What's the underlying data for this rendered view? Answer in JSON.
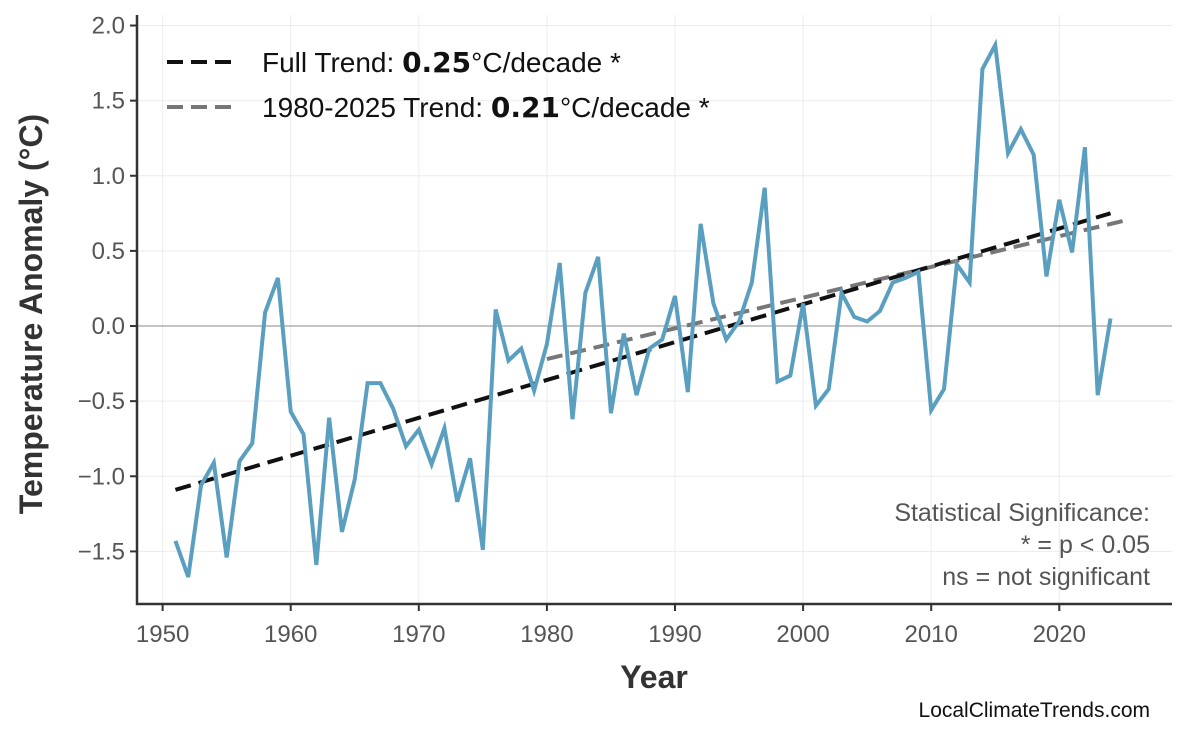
{
  "chart_data": {
    "type": "line",
    "title": "",
    "xlabel": "Year",
    "ylabel": "Temperature Anomaly (°C)",
    "xlim": [
      1948,
      2028.8
    ],
    "ylim": [
      -1.85,
      2.07
    ],
    "xticks": [
      1950,
      1960,
      1970,
      1980,
      1990,
      2000,
      2010,
      2020
    ],
    "yticks": [
      -1.5,
      -1.0,
      -0.5,
      0.0,
      0.5,
      1.0,
      1.5,
      2.0
    ],
    "ytick_labels": [
      "−1.5",
      "−1.0",
      "−0.5",
      "0.0",
      "0.5",
      "1.0",
      "1.5",
      "2.0"
    ],
    "grid": true,
    "legend_placement": "top-left",
    "series": [
      {
        "color": "#5a9fc0",
        "x": [
          1951,
          1952,
          1953,
          1954,
          1955,
          1956,
          1957,
          1958,
          1959,
          1960,
          1961,
          1962,
          1963,
          1964,
          1965,
          1966,
          1967,
          1968,
          1969,
          1970,
          1971,
          1972,
          1973,
          1974,
          1975,
          1976,
          1977,
          1978,
          1979,
          1980,
          1981,
          1982,
          1983,
          1984,
          1985,
          1986,
          1987,
          1988,
          1989,
          1990,
          1991,
          1992,
          1993,
          1994,
          1995,
          1996,
          1997,
          1998,
          1999,
          2000,
          2001,
          2002,
          2003,
          2004,
          2005,
          2006,
          2007,
          2008,
          2009,
          2010,
          2011,
          2012,
          2013,
          2014,
          2015,
          2016,
          2017,
          2018,
          2019,
          2020,
          2021,
          2022,
          2023,
          2024
        ],
        "y": [
          -1.43,
          -1.67,
          -1.06,
          -0.91,
          -1.54,
          -0.9,
          -0.78,
          0.09,
          0.32,
          -0.57,
          -0.72,
          -1.59,
          -0.61,
          -1.37,
          -1.02,
          -0.38,
          -0.38,
          -0.55,
          -0.8,
          -0.69,
          -0.92,
          -0.68,
          -1.17,
          -0.88,
          -1.49,
          0.11,
          -0.23,
          -0.15,
          -0.43,
          -0.12,
          0.42,
          -0.62,
          0.22,
          0.46,
          -0.58,
          -0.05,
          -0.46,
          -0.15,
          -0.09,
          0.2,
          -0.44,
          0.68,
          0.15,
          -0.09,
          0.03,
          0.29,
          0.92,
          -0.37,
          -0.33,
          0.15,
          -0.53,
          -0.42,
          0.22,
          0.06,
          0.03,
          0.1,
          0.29,
          0.32,
          0.36,
          -0.56,
          -0.42,
          0.41,
          0.29,
          1.71,
          1.87,
          1.15,
          1.31,
          1.14,
          0.33,
          0.84,
          0.49,
          1.19,
          -0.46,
          0.05
        ]
      }
    ],
    "trends": [
      {
        "prefix": "Full Trend: ",
        "value": "0.25",
        "suffix": "°C/decade *",
        "color": "#111111",
        "x": [
          1951,
          2024
        ],
        "y": [
          -1.09,
          0.75
        ]
      },
      {
        "prefix": "1980-2025 Trend: ",
        "value": "0.21",
        "suffix": "°C/decade *",
        "color": "#777777",
        "x": [
          1980,
          2025
        ],
        "y": [
          -0.22,
          0.7
        ]
      }
    ],
    "annotation": [
      "Statistical Significance:",
      "* = p < 0.05",
      "ns = not significant"
    ],
    "watermark": "LocalClimateTrends.com"
  }
}
